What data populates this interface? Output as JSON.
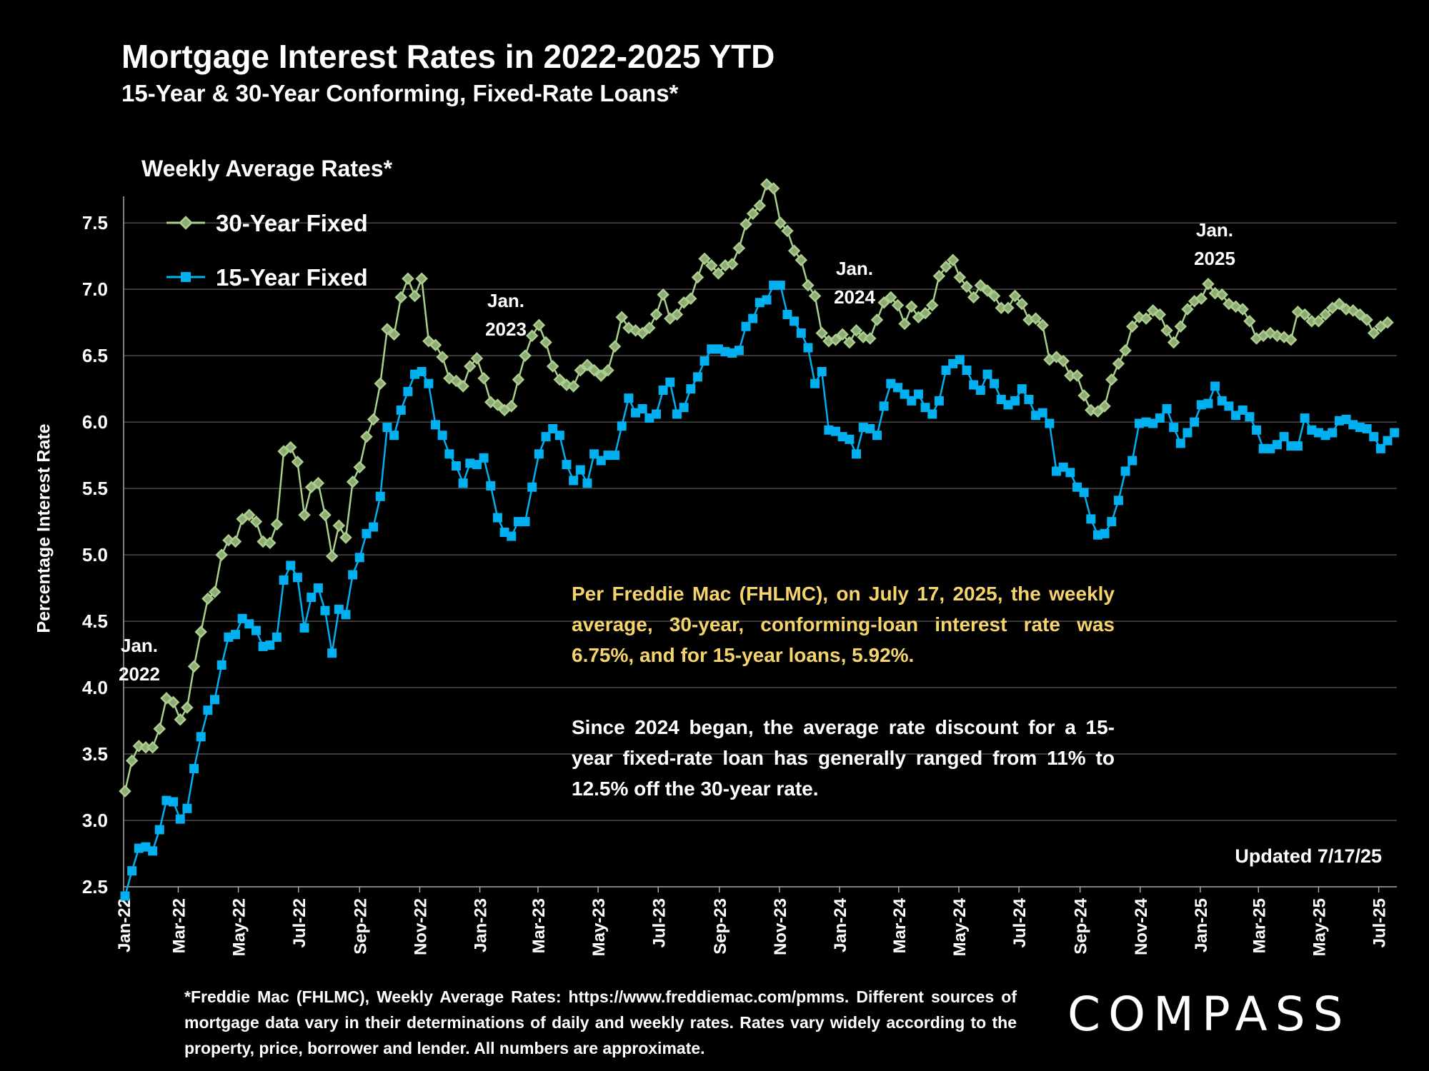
{
  "title": "Mortgage Interest Rates in 2022-2025 YTD",
  "subtitle": "15-Year & 30-Year Conforming, Fixed-Rate Loans*",
  "weekly_label": "Weekly Average Rates*",
  "note_yellow": "Per Freddie Mac (FHLMC), on July 17, 2025, the weekly average, 30-year, conforming-loan interest rate was 6.75%, and for 15-year loans, 5.92%.",
  "note_white": "Since 2024 began, the average rate discount for a 15-year fixed-rate loan has generally ranged from 11% to 12.5% off the 30-year rate.",
  "updated": "Updated 7/17/25",
  "footnote": "*Freddie Mac (FHLMC), Weekly Average Rates: https://www.freddiemac.com/pmms. Different sources of mortgage data vary in their determinations of daily and weekly rates. Rates vary widely according to the property, price, borrower and lender. All numbers are approximate.",
  "logo": "COMPASS",
  "colors": {
    "series_30": "#a9cf8a",
    "series_30_marker": "#a9cf8a",
    "series_15": "#00b0f0",
    "grid": "#4a4a4a",
    "note_yellow": "#f5d46b"
  },
  "chart_data": {
    "type": "line",
    "ylabel": "Percentage Interest  Rate",
    "ylim": [
      2.5,
      7.7
    ],
    "yticks": [
      "2.5",
      "3.0",
      "3.5",
      "4.0",
      "4.5",
      "5.0",
      "5.5",
      "6.0",
      "6.5",
      "7.0",
      "7.5"
    ],
    "x_start": "2022-01-06",
    "x_interval": "weekly",
    "xticks": [
      "Jan-22",
      "Mar-22",
      "May-22",
      "Jul-22",
      "Sep-22",
      "Nov-22",
      "Jan-23",
      "Mar-23",
      "May-23",
      "Jul-23",
      "Sep-23",
      "Nov-23",
      "Jan-24",
      "Mar-24",
      "May-24",
      "Jul-24",
      "Sep-24",
      "Nov-24",
      "Jan-25",
      "Mar-25",
      "May-25",
      "Jul-25"
    ],
    "grid": "horizontal",
    "legend_position": "top-left",
    "annotations": [
      {
        "lines": [
          "Jan.",
          "2022"
        ],
        "week": 0
      },
      {
        "lines": [
          "Jan.",
          "2023"
        ],
        "week": 52
      },
      {
        "lines": [
          "Jan.",
          "2024"
        ],
        "week": 104
      },
      {
        "lines": [
          "Jan.",
          "2025"
        ],
        "week": 156
      }
    ],
    "series": [
      {
        "name": "30-Year Fixed",
        "values": [
          3.22,
          3.45,
          3.56,
          3.55,
          3.55,
          3.69,
          3.92,
          3.89,
          3.76,
          3.85,
          4.16,
          4.42,
          4.67,
          4.72,
          5.0,
          5.11,
          5.1,
          5.27,
          5.3,
          5.25,
          5.1,
          5.09,
          5.23,
          5.78,
          5.81,
          5.7,
          5.3,
          5.51,
          5.54,
          5.3,
          4.99,
          5.22,
          5.13,
          5.55,
          5.66,
          5.89,
          6.02,
          6.29,
          6.7,
          6.66,
          6.94,
          7.08,
          6.95,
          7.08,
          6.61,
          6.58,
          6.49,
          6.33,
          6.31,
          6.27,
          6.42,
          6.48,
          6.33,
          6.15,
          6.13,
          6.09,
          6.12,
          6.32,
          6.5,
          6.65,
          6.73,
          6.6,
          6.42,
          6.32,
          6.28,
          6.27,
          6.39,
          6.43,
          6.39,
          6.35,
          6.39,
          6.57,
          6.79,
          6.71,
          6.69,
          6.67,
          6.71,
          6.81,
          6.96,
          6.78,
          6.81,
          6.9,
          6.93,
          7.09,
          7.23,
          7.18,
          7.12,
          7.18,
          7.19,
          7.31,
          7.49,
          7.57,
          7.63,
          7.79,
          7.76,
          7.5,
          7.44,
          7.29,
          7.22,
          7.03,
          6.95,
          6.67,
          6.61,
          6.62,
          6.66,
          6.6,
          6.69,
          6.64,
          6.63,
          6.77,
          6.9,
          6.94,
          6.88,
          6.74,
          6.87,
          6.79,
          6.82,
          6.88,
          7.1,
          7.17,
          7.22,
          7.09,
          7.02,
          6.94,
          7.03,
          6.99,
          6.95,
          6.86,
          6.86,
          6.95,
          6.89,
          6.77,
          6.78,
          6.73,
          6.47,
          6.49,
          6.46,
          6.35,
          6.35,
          6.2,
          6.09,
          6.08,
          6.12,
          6.32,
          6.44,
          6.54,
          6.72,
          6.79,
          6.78,
          6.84,
          6.81,
          6.69,
          6.6,
          6.72,
          6.85,
          6.91,
          6.93,
          7.04,
          6.97,
          6.96,
          6.89,
          6.87,
          6.85,
          6.76,
          6.63,
          6.65,
          6.67,
          6.65,
          6.64,
          6.62,
          6.83,
          6.81,
          6.76,
          6.76,
          6.81,
          6.86,
          6.89,
          6.85,
          6.84,
          6.81,
          6.77,
          6.67,
          6.72,
          6.75
        ]
      },
      {
        "name": "15-Year Fixed",
        "values": [
          2.43,
          2.62,
          2.79,
          2.8,
          2.77,
          2.93,
          3.15,
          3.14,
          3.01,
          3.09,
          3.39,
          3.63,
          3.83,
          3.91,
          4.17,
          4.38,
          4.4,
          4.52,
          4.48,
          4.43,
          4.31,
          4.32,
          4.38,
          4.81,
          4.92,
          4.83,
          4.45,
          4.68,
          4.75,
          4.58,
          4.26,
          4.59,
          4.55,
          4.85,
          4.98,
          5.16,
          5.21,
          5.44,
          5.96,
          5.9,
          6.09,
          6.23,
          6.36,
          6.38,
          6.29,
          5.98,
          5.9,
          5.76,
          5.67,
          5.54,
          5.69,
          5.68,
          5.73,
          5.52,
          5.28,
          5.17,
          5.14,
          5.25,
          5.25,
          5.51,
          5.76,
          5.89,
          5.95,
          5.9,
          5.68,
          5.56,
          5.64,
          5.54,
          5.76,
          5.71,
          5.75,
          5.75,
          5.97,
          6.18,
          6.07,
          6.1,
          6.03,
          6.06,
          6.24,
          6.3,
          6.06,
          6.11,
          6.25,
          6.34,
          6.46,
          6.55,
          6.55,
          6.53,
          6.52,
          6.54,
          6.72,
          6.78,
          6.9,
          6.92,
          7.03,
          7.03,
          6.81,
          6.76,
          6.67,
          6.56,
          6.29,
          6.38,
          5.94,
          5.93,
          5.89,
          5.87,
          5.76,
          5.96,
          5.95,
          5.9,
          6.12,
          6.29,
          6.26,
          6.21,
          6.16,
          6.21,
          6.11,
          6.06,
          6.16,
          6.39,
          6.44,
          6.47,
          6.39,
          6.28,
          6.24,
          6.36,
          6.29,
          6.17,
          6.13,
          6.16,
          6.25,
          6.17,
          6.05,
          6.07,
          5.99,
          5.63,
          5.66,
          5.62,
          5.51,
          5.47,
          5.27,
          5.15,
          5.16,
          5.25,
          5.41,
          5.63,
          5.71,
          5.99,
          6.0,
          5.99,
          6.03,
          6.1,
          5.96,
          5.84,
          5.92,
          6.0,
          6.13,
          6.14,
          6.27,
          6.16,
          6.12,
          6.05,
          6.09,
          6.04,
          5.94,
          5.8,
          5.8,
          5.83,
          5.89,
          5.82,
          5.82,
          6.03,
          5.94,
          5.92,
          5.9,
          5.92,
          6.01,
          6.02,
          5.98,
          5.96,
          5.95,
          5.89,
          5.8,
          5.86,
          5.92
        ]
      }
    ]
  }
}
